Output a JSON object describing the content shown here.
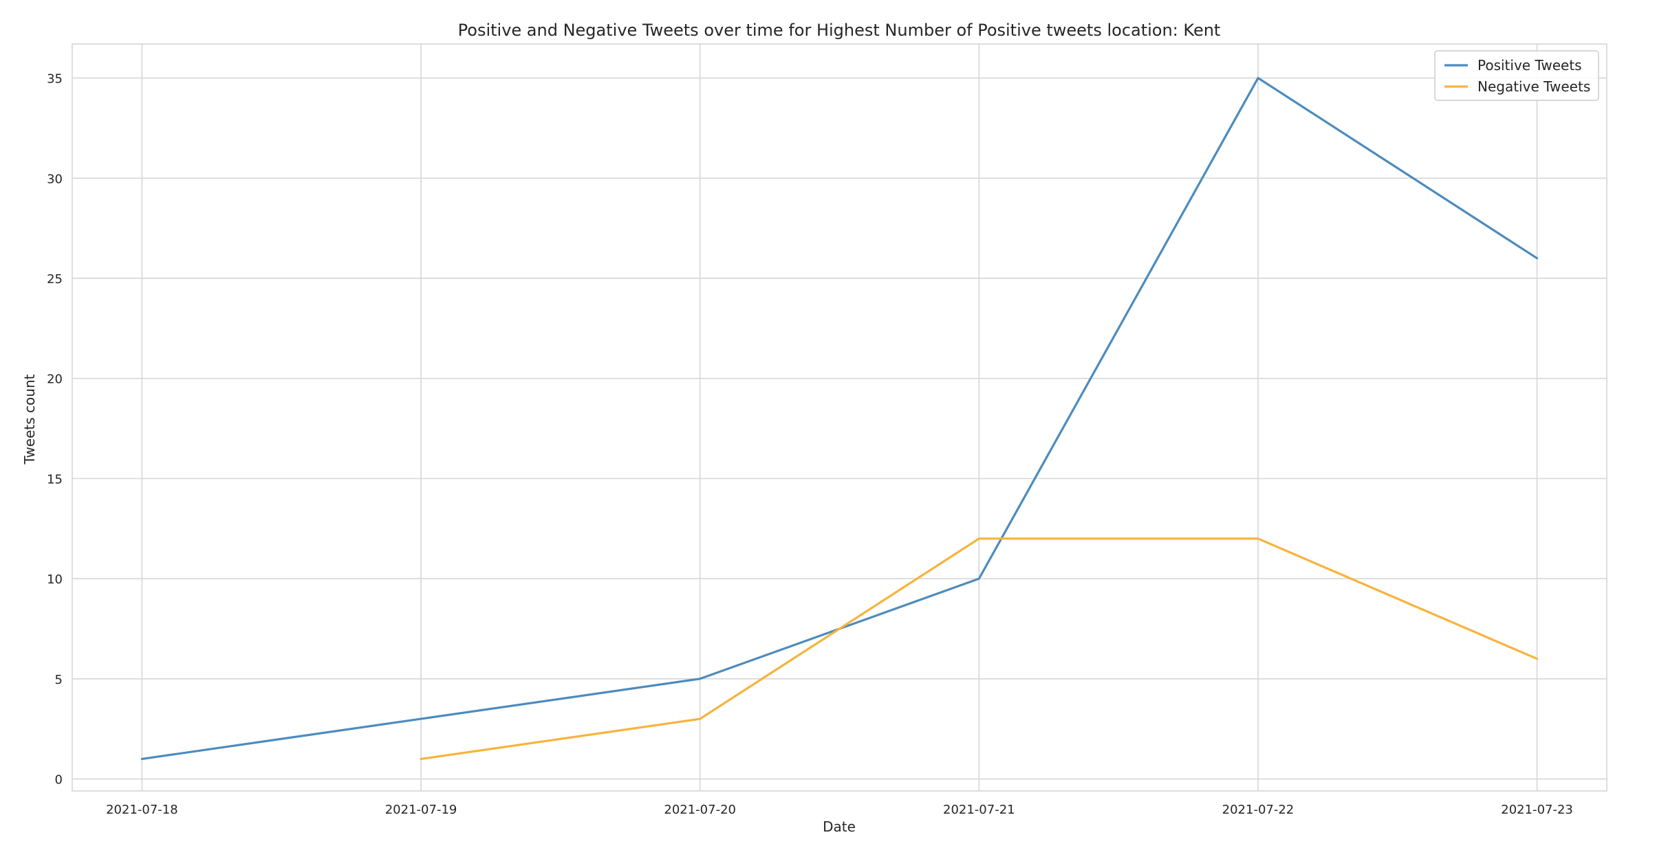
{
  "chart_data": {
    "type": "line",
    "title": "Positive and Negative Tweets over time for Highest Number of Positive tweets location: Kent",
    "xlabel": "Date",
    "ylabel": "Tweets count",
    "x": [
      "2021-07-18",
      "2021-07-19",
      "2021-07-20",
      "2021-07-21",
      "2021-07-22",
      "2021-07-23"
    ],
    "xlim": [
      "2021-07-17.75",
      "2021-07-23.25"
    ],
    "ylim": [
      -0.6,
      36.7
    ],
    "yticks": [
      0,
      5,
      10,
      15,
      20,
      25,
      30,
      35
    ],
    "grid": true,
    "legend_position": "top-right",
    "series": [
      {
        "name": "Positive Tweets",
        "color": "#4c8bbd",
        "values": [
          1,
          3,
          5,
          10,
          35,
          26
        ]
      },
      {
        "name": "Negative Tweets",
        "color": "#f7b33c",
        "values": [
          null,
          1,
          3,
          12,
          12,
          6
        ]
      }
    ]
  }
}
